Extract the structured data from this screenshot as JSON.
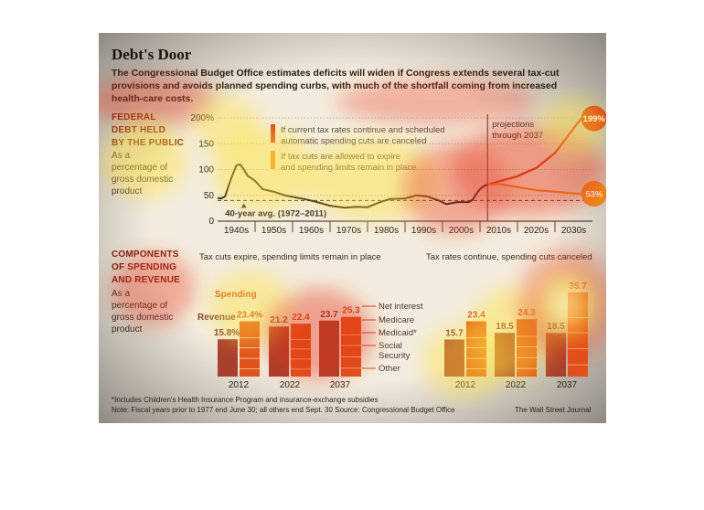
{
  "title": "Debt's Door",
  "intro": [
    "The Congressional Budget Office estimates deficits will widen if Congress extends several tax-cut",
    "provisions and avoids planned spending curbs, with much of the shortfall coming from increased",
    "health-care costs."
  ],
  "debt_section": {
    "title_lines": [
      "FEDERAL",
      "DEBT HELD",
      "BY THE PUBLIC"
    ],
    "subtitle_lines": [
      "As a",
      "percentage of",
      "gross domestic",
      "product"
    ]
  },
  "components_section": {
    "title_lines": [
      "COMPONENTS",
      "OF SPENDING",
      "AND REVENUE"
    ],
    "subtitle_lines": [
      "As a",
      "percentage of",
      "gross domestic",
      "product"
    ]
  },
  "footnotes": {
    "note1": "*Includes Children's Health Insurance Program and insurance-exchange subsidies",
    "note2": "Note: Fiscal years prior to 1977 end June 30; all others end Sept. 30   Source: Congressional Budget Office",
    "credit": "The Wall Street Journal"
  },
  "colors": {
    "panel_bg": "#f3ecde",
    "line_black": "#2a1a14",
    "scenario_red": "#d63a16",
    "scenario_orange": "#ee8a1c",
    "revenue_bar": "#a9402e",
    "spending_bar": "#e0531c",
    "heat_red": "#e8341a",
    "heat_yellow": "#ffe43a"
  },
  "chart_data": [
    {
      "type": "line",
      "title": "FEDERAL DEBT HELD BY THE PUBLIC",
      "x_tick_labels": [
        "1940s",
        "1950s",
        "1960s",
        "1970s",
        "1980s",
        "1990s",
        "2000s",
        "2010s",
        "2020s",
        "2030s"
      ],
      "y_tick_labels": [
        "0",
        "50",
        "100",
        "150",
        "200%"
      ],
      "ylim": [
        0,
        200
      ],
      "xlim": [
        1940,
        2040
      ],
      "grid": true,
      "reference_line": {
        "value": 40,
        "label": "40-year avg. (1972–2011)"
      },
      "projection_start": 2012,
      "projection_label": [
        "projections",
        "through 2037"
      ],
      "legend": [
        {
          "name": "If current tax rates continue and scheduled automatic spending cuts are canceled",
          "lines": [
            "If current tax rates continue and scheduled",
            "automatic spending cuts are canceled"
          ],
          "color": "#d63a16"
        },
        {
          "name": "If tax cuts are allowed to expire and spending limits remain in place",
          "lines": [
            "If tax cuts are allowed to expire",
            "and spending limits remain in place"
          ],
          "color": "#ee8a1c"
        }
      ],
      "series": [
        {
          "name": "historical",
          "x": [
            1940,
            1941,
            1942,
            1943,
            1944,
            1945,
            1946,
            1947,
            1948,
            1950,
            1952,
            1955,
            1958,
            1960,
            1963,
            1966,
            1970,
            1974,
            1977,
            1980,
            1983,
            1986,
            1990,
            1993,
            1996,
            1999,
            2001,
            2004,
            2007,
            2008,
            2009,
            2010,
            2011,
            2012
          ],
          "y": [
            45,
            44,
            48,
            70,
            90,
            108,
            110,
            100,
            88,
            78,
            62,
            57,
            50,
            47,
            43,
            38,
            30,
            26,
            28,
            27,
            36,
            43,
            44,
            50,
            48,
            40,
            33,
            37,
            37,
            41,
            53,
            62,
            68,
            71
          ]
        },
        {
          "name": "If current tax rates continue and scheduled automatic spending cuts are canceled",
          "x": [
            2012,
            2015,
            2020,
            2025,
            2030,
            2035,
            2037
          ],
          "y": [
            71,
            77,
            87,
            103,
            132,
            180,
            199
          ],
          "end_label": "199%"
        },
        {
          "name": "If tax cuts are allowed to expire and spending limits remain in place",
          "x": [
            2012,
            2015,
            2020,
            2025,
            2030,
            2035,
            2037
          ],
          "y": [
            71,
            72,
            66,
            60,
            57,
            54,
            53
          ],
          "end_label": "53%"
        }
      ]
    },
    {
      "type": "bar",
      "title": "Tax cuts expire, spending limits remain in place",
      "categories": [
        "2012",
        "2022",
        "2037"
      ],
      "series": [
        {
          "name": "Revenue",
          "values": [
            15.8,
            21.2,
            23.7
          ],
          "labels": [
            "15.8%",
            "21.2",
            "23.7"
          ]
        },
        {
          "name": "Spending",
          "values": [
            23.4,
            22.4,
            25.3
          ],
          "labels": [
            "23.4%",
            "22.4",
            "25.3"
          ]
        }
      ],
      "spending_components": [
        "Net interest",
        "Medicare",
        "Medicaid*",
        "Social Security",
        "Other"
      ],
      "component_labels": [
        "Net interest",
        "Medicare",
        "Medicaid*",
        "Social",
        "Security",
        "Other"
      ],
      "ylim": [
        0,
        36
      ]
    },
    {
      "type": "bar",
      "title": "Tax rates continue, spending cuts canceled",
      "categories": [
        "2012",
        "2022",
        "2037"
      ],
      "series": [
        {
          "name": "Revenue",
          "values": [
            15.7,
            18.5,
            18.5
          ],
          "labels": [
            "15.7",
            "18.5",
            "18.5"
          ]
        },
        {
          "name": "Spending",
          "values": [
            23.4,
            24.3,
            35.7
          ],
          "labels": [
            "23.4",
            "24.3",
            "35.7"
          ]
        }
      ],
      "ylim": [
        0,
        36
      ]
    }
  ]
}
